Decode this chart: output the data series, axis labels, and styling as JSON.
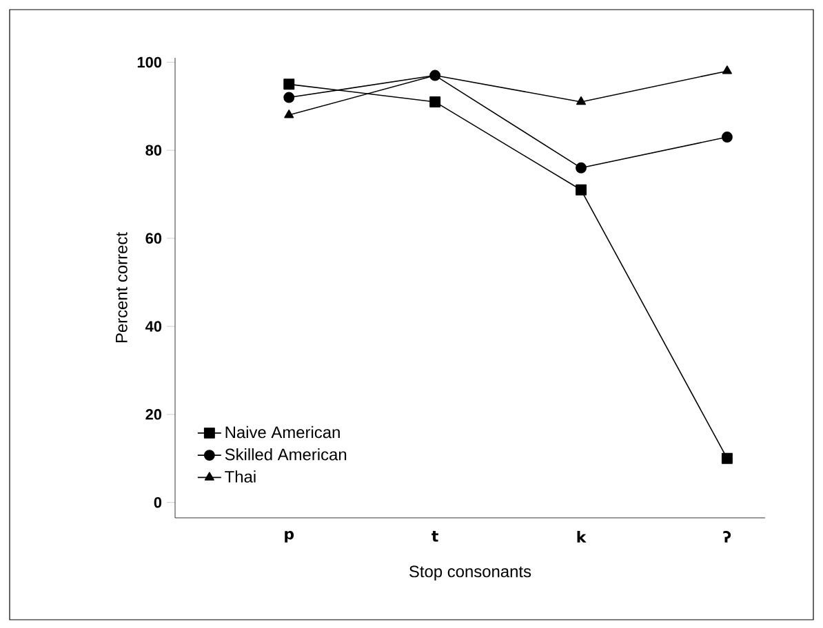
{
  "chart_data": {
    "type": "line",
    "xlabel": "Stop consonants",
    "ylabel": "Percent correct",
    "categories": [
      "p",
      "t",
      "k",
      "ʔ"
    ],
    "series": [
      {
        "name": "Naive American",
        "color": "#000000",
        "marker": "square",
        "values": [
          95,
          91,
          71,
          10
        ]
      },
      {
        "name": "Skilled American",
        "color": "#000000",
        "marker": "circle",
        "values": [
          92,
          97,
          76,
          83
        ]
      },
      {
        "name": "Thai",
        "color": "#000000",
        "marker": "triangle",
        "values": [
          88,
          97,
          91,
          98
        ]
      }
    ],
    "ylim": [
      -3.5,
      101
    ],
    "yticks": [
      0,
      20,
      40,
      60,
      80,
      100
    ],
    "grid": false,
    "legend": "bottom left",
    "line_style": "solid"
  }
}
